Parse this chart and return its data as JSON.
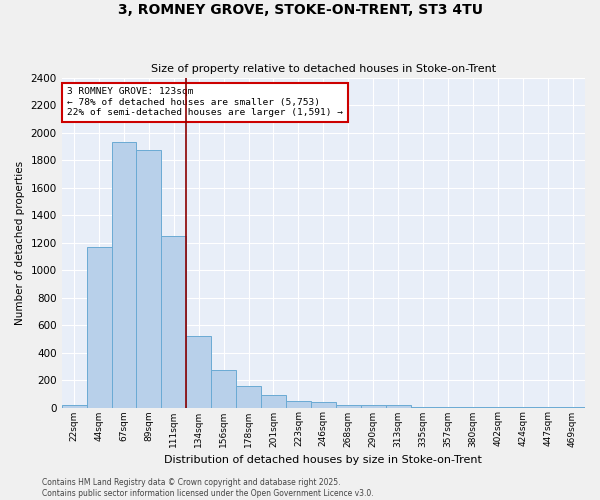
{
  "title_line1": "3, ROMNEY GROVE, STOKE-ON-TRENT, ST3 4TU",
  "title_line2": "Size of property relative to detached houses in Stoke-on-Trent",
  "xlabel": "Distribution of detached houses by size in Stoke-on-Trent",
  "ylabel": "Number of detached properties",
  "categories": [
    "22sqm",
    "44sqm",
    "67sqm",
    "89sqm",
    "111sqm",
    "134sqm",
    "156sqm",
    "178sqm",
    "201sqm",
    "223sqm",
    "246sqm",
    "268sqm",
    "290sqm",
    "313sqm",
    "335sqm",
    "357sqm",
    "380sqm",
    "402sqm",
    "424sqm",
    "447sqm",
    "469sqm"
  ],
  "values": [
    20,
    1170,
    1930,
    1870,
    1250,
    520,
    270,
    155,
    90,
    47,
    37,
    15,
    15,
    20,
    5,
    5,
    5,
    5,
    5,
    5,
    5
  ],
  "bar_color": "#b8d0ea",
  "bar_edge_color": "#6aaad4",
  "bg_color": "#e8eef8",
  "grid_color": "#ffffff",
  "vline_color": "#8b0000",
  "annotation_text": "3 ROMNEY GROVE: 123sqm\n← 78% of detached houses are smaller (5,753)\n22% of semi-detached houses are larger (1,591) →",
  "annotation_box_color": "#ffffff",
  "annotation_box_edge": "#cc0000",
  "footer_line1": "Contains HM Land Registry data © Crown copyright and database right 2025.",
  "footer_line2": "Contains public sector information licensed under the Open Government Licence v3.0.",
  "ylim": [
    0,
    2400
  ],
  "yticks": [
    0,
    200,
    400,
    600,
    800,
    1000,
    1200,
    1400,
    1600,
    1800,
    2000,
    2200,
    2400
  ],
  "fig_bg": "#f0f0f0"
}
